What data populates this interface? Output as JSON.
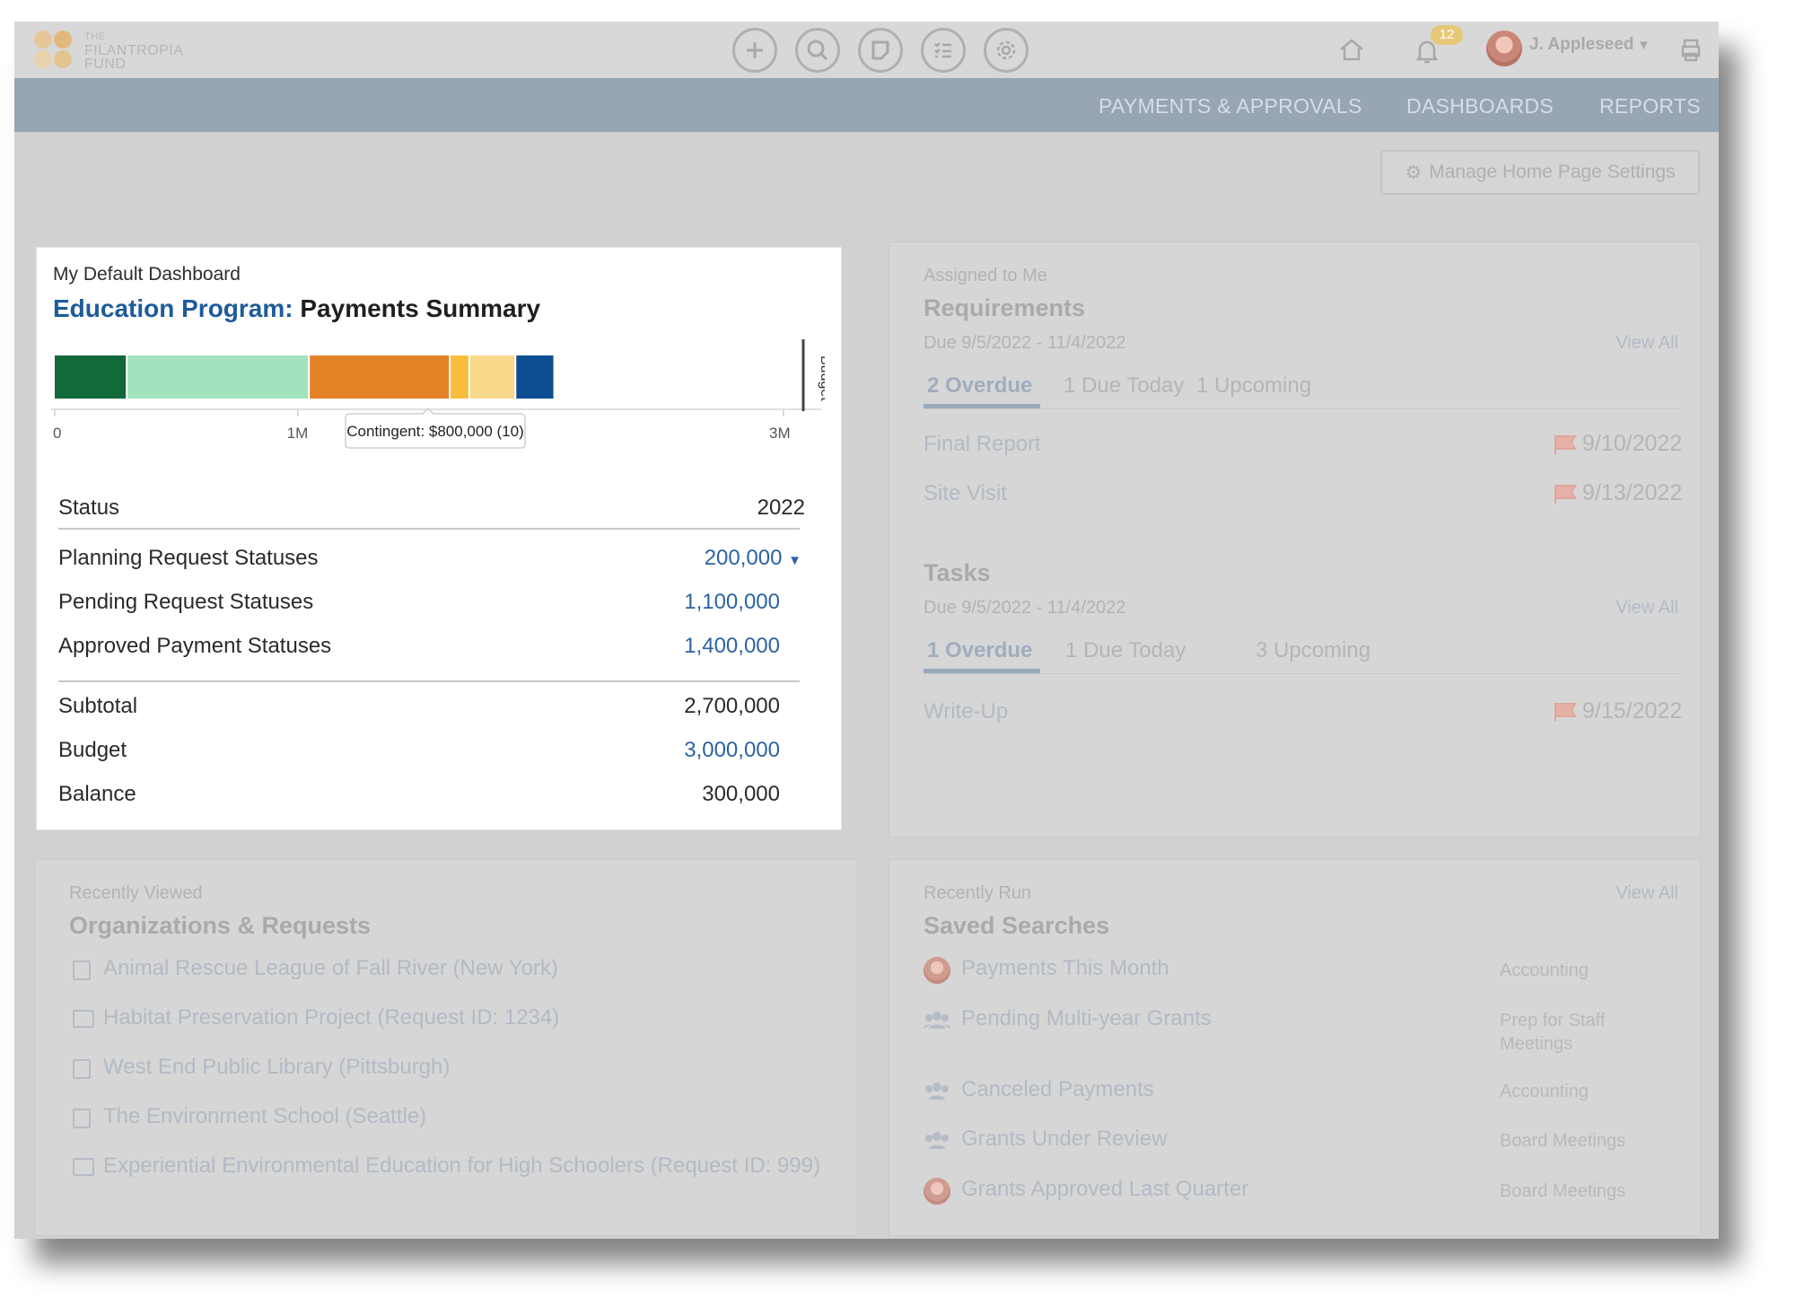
{
  "header": {
    "logo_lines": [
      "THE",
      "FILANTROPIA",
      "FUND"
    ],
    "notification_count": "12",
    "user_name": "J. Appleseed"
  },
  "nav": {
    "items": [
      "PAYMENTS & APPROVALS",
      "DASHBOARDS",
      "REPORTS"
    ]
  },
  "settings_button": "Manage Home Page Settings",
  "dashboard": {
    "kicker": "My Default Dashboard",
    "title_program": "Education Program:",
    "title_rest": "Payments Summary",
    "budget_label": "Budget",
    "tooltip": "Contingent: $800,000 (10)",
    "table": {
      "header_label": "Status",
      "header_year": "2022",
      "rows": [
        {
          "label": "Planning Request Statuses",
          "value": "200,000"
        },
        {
          "label": "Pending Request Statuses",
          "value": "1,100,000"
        },
        {
          "label": "Approved Payment Statuses",
          "value": "1,400,000"
        }
      ],
      "subtotal_label": "Subtotal",
      "subtotal_value": "2,700,000",
      "budget_label": "Budget",
      "budget_value": "3,000,000",
      "balance_label": "Balance",
      "balance_value": "300,000"
    }
  },
  "chart_data": {
    "type": "bar",
    "orientation": "horizontal-stacked",
    "axis_ticks": [
      "0",
      "1M",
      "3M"
    ],
    "xlim": [
      0,
      3000000
    ],
    "budget_line": 3000000,
    "segments": [
      {
        "value": 300000,
        "color": "#12693a"
      },
      {
        "value": 750000,
        "color": "#a3e2be"
      },
      {
        "value": 580000,
        "color": "#e48227"
      },
      {
        "value": 80000,
        "color": "#f8bd3c"
      },
      {
        "value": 190000,
        "color": "#f9d98b"
      },
      {
        "value": 160000,
        "color": "#0d4d92"
      }
    ]
  },
  "requirements": {
    "kicker": "Assigned to Me",
    "title": "Requirements",
    "due": "Due 9/5/2022 - 11/4/2022",
    "view_all": "View All",
    "tabs": [
      "2 Overdue",
      "1 Due Today",
      "1 Upcoming"
    ],
    "items": [
      {
        "name": "Final Report",
        "date": "9/10/2022"
      },
      {
        "name": "Site Visit",
        "date": "9/13/2022"
      }
    ]
  },
  "tasks": {
    "title": "Tasks",
    "due": "Due 9/5/2022 - 11/4/2022",
    "view_all": "View All",
    "tabs": [
      "1 Overdue",
      "1 Due Today",
      "3 Upcoming"
    ],
    "items": [
      {
        "name": "Write-Up",
        "date": "9/15/2022"
      }
    ]
  },
  "recent": {
    "kicker": "Recently Viewed",
    "title": "Organizations & Requests",
    "items": [
      {
        "text": "Animal Rescue League of Fall River (New York)",
        "icon": "building-icon"
      },
      {
        "text": "Habitat Preservation Project (Request ID: 1234)",
        "icon": "folder-icon"
      },
      {
        "text": "West End Public Library (Pittsburgh)",
        "icon": "building-icon"
      },
      {
        "text": "The Environment School (Seattle)",
        "icon": "building-icon"
      },
      {
        "text": "Experiential Environmental Education for High Schoolers (Request ID: 999)",
        "icon": "folder-icon"
      }
    ]
  },
  "saved": {
    "kicker": "Recently Run",
    "title": "Saved Searches",
    "view_all": "View All",
    "items": [
      {
        "name": "Payments This Month",
        "category": "Accounting",
        "icon": "avatar-icon"
      },
      {
        "name": "Pending Multi-year Grants",
        "category": "Prep for Staff Meetings",
        "icon": "group-icon"
      },
      {
        "name": "Canceled Payments",
        "category": "Accounting",
        "icon": "group-icon"
      },
      {
        "name": "Grants Under Review",
        "category": "Board Meetings",
        "icon": "group-icon"
      },
      {
        "name": "Grants Approved Last Quarter",
        "category": "Board Meetings",
        "icon": "avatar-icon"
      }
    ]
  }
}
